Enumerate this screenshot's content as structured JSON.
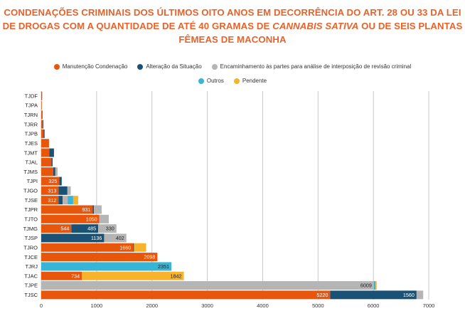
{
  "title": {
    "line1": "CONDENAÇÕES CRIMINAIS DOS ÚLTIMOS OITO ANOS EM DECORRÊNCIA DO ART. 28 OU 33 DA LEI",
    "line2_pre": "DE DROGAS COM A QUANTIDADE DE ATÉ 40 GRAMAS DE ",
    "line2_em": "CANNABIS SATIVA",
    "line2_post": " OU DE SEIS PLANTAS",
    "line3": "FÊMEAS DE MACONHA"
  },
  "chart_data": {
    "type": "bar",
    "orientation": "horizontal",
    "stacked": true,
    "categories": [
      "TJDF",
      "TJPA",
      "TJRN",
      "TJRR",
      "TJPB",
      "TJES",
      "TJMT",
      "TJAL",
      "TJMS",
      "TJPI",
      "TJGO",
      "TJSE",
      "TJPR",
      "TJTO",
      "TJMG",
      "TJSP",
      "TJRO",
      "TJCE",
      "TJRJ",
      "TJAC",
      "TJPE",
      "TJSC"
    ],
    "series": [
      {
        "name": "Manutenção Condenação",
        "color": "#e8560c",
        "values": [
          8,
          10,
          12,
          30,
          40,
          140,
          145,
          185,
          215,
          325,
          313,
          312,
          931,
          1050,
          544,
          0,
          1660,
          2098,
          0,
          734,
          0,
          5220
        ]
      },
      {
        "name": "Alteração da Situação",
        "color": "#1a5276",
        "values": [
          8,
          0,
          10,
          10,
          20,
          0,
          85,
          20,
          40,
          45,
          160,
          75,
          20,
          0,
          485,
          1136,
          15,
          0,
          0,
          0,
          0,
          1560
        ]
      },
      {
        "name": "Encaminhamento às partes para análise de interposição de revisão criminal",
        "color": "#b5b5b5",
        "values": [
          0,
          0,
          0,
          0,
          0,
          0,
          0,
          0,
          40,
          0,
          60,
          90,
          140,
          170,
          330,
          402,
          0,
          0,
          0,
          0,
          6009,
          120
        ]
      },
      {
        "name": "Outros",
        "color": "#36b5d6",
        "values": [
          0,
          0,
          0,
          0,
          0,
          0,
          0,
          0,
          0,
          0,
          0,
          100,
          0,
          0,
          0,
          0,
          0,
          0,
          2351,
          0,
          30,
          0
        ]
      },
      {
        "name": "Pendente",
        "color": "#f7b32b",
        "values": [
          0,
          0,
          0,
          0,
          0,
          0,
          0,
          0,
          0,
          0,
          0,
          90,
          0,
          0,
          0,
          0,
          220,
          0,
          0,
          1842,
          20,
          0
        ]
      }
    ],
    "data_labels": [
      {
        "category": "TJPI",
        "series": 0,
        "text": "325"
      },
      {
        "category": "TJGO",
        "series": 0,
        "text": "313"
      },
      {
        "category": "TJSE",
        "series": 0,
        "text": "312"
      },
      {
        "category": "TJPR",
        "series": 0,
        "text": "931"
      },
      {
        "category": "TJTO",
        "series": 0,
        "text": "1050"
      },
      {
        "category": "TJMG",
        "series": 0,
        "text": "544"
      },
      {
        "category": "TJMG",
        "series": 1,
        "text": "485"
      },
      {
        "category": "TJMG",
        "series": 2,
        "text": "330"
      },
      {
        "category": "TJSP",
        "series": 1,
        "text": "1136"
      },
      {
        "category": "TJSP",
        "series": 2,
        "text": "402"
      },
      {
        "category": "TJRO",
        "series": 0,
        "text": "1660"
      },
      {
        "category": "TJCE",
        "series": 0,
        "text": "2098"
      },
      {
        "category": "TJRJ",
        "series": 3,
        "text": "2351"
      },
      {
        "category": "TJAC",
        "series": 0,
        "text": "734"
      },
      {
        "category": "TJAC",
        "series": 4,
        "text": "1842"
      },
      {
        "category": "TJPE",
        "series": 2,
        "text": "6009"
      },
      {
        "category": "TJSC",
        "series": 0,
        "text": "5220"
      },
      {
        "category": "TJSC",
        "series": 1,
        "text": "1560"
      }
    ],
    "xlim": [
      0,
      7000
    ],
    "xticks": [
      0,
      1000,
      2000,
      3000,
      4000,
      5000,
      6000,
      7000
    ],
    "grid": true,
    "legend_position": "top"
  }
}
